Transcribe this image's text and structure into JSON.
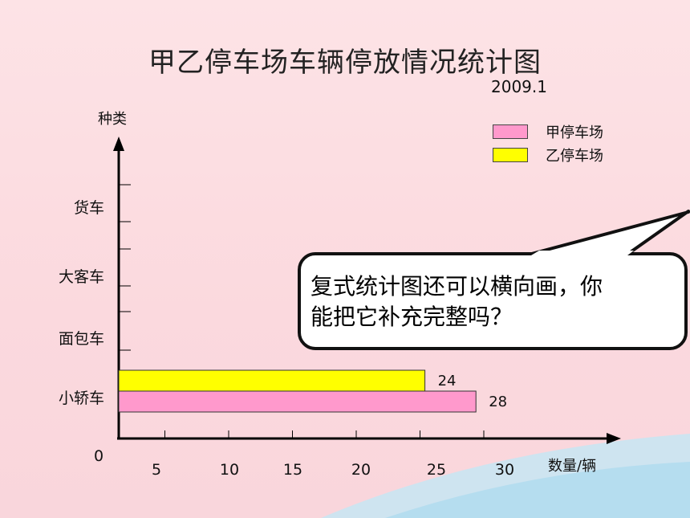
{
  "chart_data": {
    "type": "bar",
    "orientation": "horizontal",
    "title": "甲乙停车场车辆停放情况统计图",
    "subtitle": "2009.1",
    "ylabel": "种类",
    "xlabel": "数量/辆",
    "categories": [
      "小轿车",
      "面包车",
      "大客车",
      "货车"
    ],
    "origin_label": "0",
    "x_ticks": [
      "5",
      "10",
      "15",
      "20",
      "25",
      "30"
    ],
    "xlim": [
      0,
      35
    ],
    "legend_position": "top-right",
    "series": [
      {
        "name": "甲停车场",
        "color": "#ff99cc",
        "values": [
          28,
          null,
          null,
          null
        ],
        "labels": [
          "28",
          "",
          "",
          ""
        ]
      },
      {
        "name": "乙停车场",
        "color": "#ffff00",
        "values": [
          24,
          null,
          null,
          null
        ],
        "labels": [
          "24",
          "",
          "",
          ""
        ]
      }
    ]
  },
  "callout": {
    "line1": "复式统计图还可以横向画，你",
    "line2": "能把它补充完整吗？"
  }
}
